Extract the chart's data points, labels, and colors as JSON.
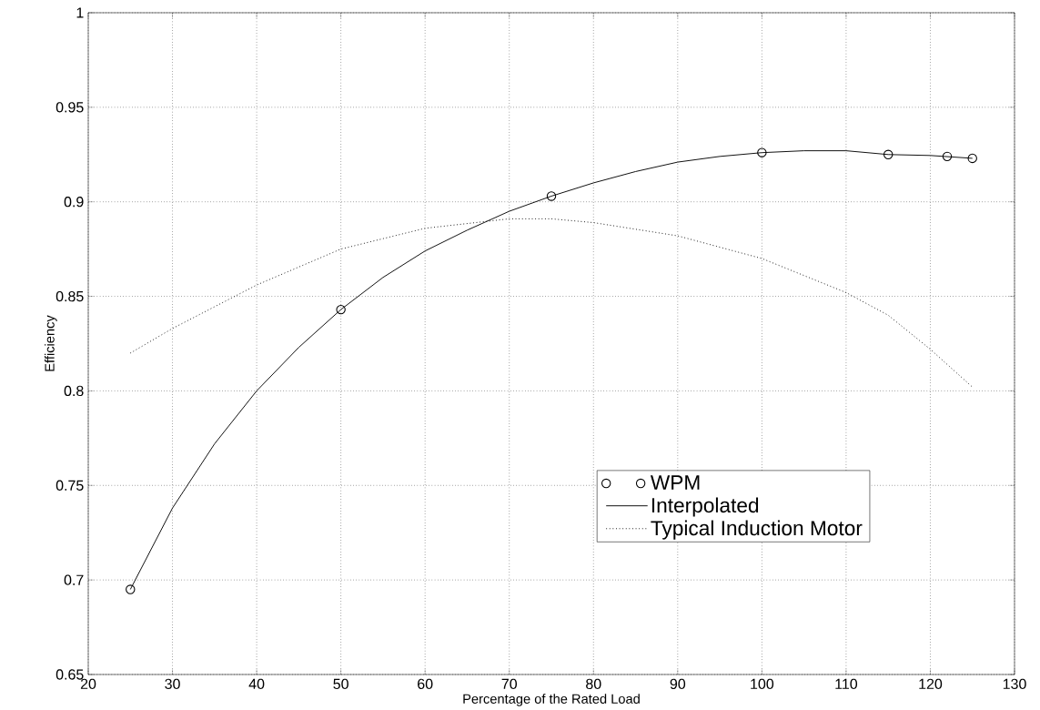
{
  "chart_data": {
    "type": "line",
    "xlabel": "Percentage of the Rated Load",
    "ylabel": "Efficiency",
    "xlim": [
      20,
      130
    ],
    "ylim": [
      0.65,
      1
    ],
    "xticks": [
      20,
      30,
      40,
      50,
      60,
      70,
      80,
      90,
      100,
      110,
      120,
      130
    ],
    "yticks": [
      0.65,
      0.7,
      0.75,
      0.8,
      0.85,
      0.9,
      0.95,
      1
    ],
    "grid": true,
    "legend": "bottom right",
    "series": [
      {
        "name": "WPM",
        "type": "scatter",
        "color": "#000000",
        "marker": "circle",
        "x": [
          25,
          50,
          75,
          100,
          115,
          122,
          125
        ],
        "values": [
          0.695,
          0.843,
          0.903,
          0.926,
          0.925,
          0.924,
          0.923
        ]
      },
      {
        "name": "Interpolated",
        "color": "#000000",
        "line_style": "solid",
        "x": [
          25,
          30,
          35,
          40,
          45,
          50,
          55,
          60,
          65,
          70,
          75,
          80,
          85,
          90,
          95,
          100,
          105,
          110,
          115,
          120,
          125
        ],
        "values": [
          0.695,
          0.738,
          0.772,
          0.8,
          0.823,
          0.843,
          0.86,
          0.874,
          0.885,
          0.895,
          0.903,
          0.91,
          0.916,
          0.921,
          0.924,
          0.926,
          0.927,
          0.927,
          0.925,
          0.9245,
          0.923
        ]
      },
      {
        "name": "Typical Induction Motor",
        "color": "#000000",
        "line_style": "dotted",
        "x": [
          25,
          30,
          40,
          50,
          60,
          70,
          75,
          80,
          90,
          100,
          110,
          115,
          120,
          125
        ],
        "values": [
          0.82,
          0.833,
          0.856,
          0.875,
          0.886,
          0.891,
          0.891,
          0.889,
          0.882,
          0.87,
          0.852,
          0.84,
          0.822,
          0.802
        ]
      }
    ]
  }
}
